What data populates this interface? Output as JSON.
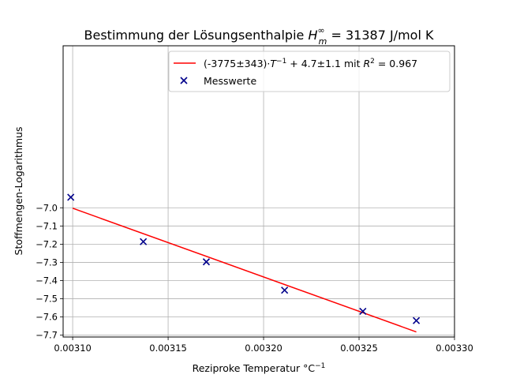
{
  "chart_data": {
    "type": "scatter",
    "title": "Bestimmung der Lösungsenthalpie",
    "title_symbol": "H",
    "title_symbol_sup": "∞",
    "title_symbol_sub": "m",
    "title_value": " = 31387 J/mol K",
    "xlabel": "Reziproke Temperatur",
    "xlabel_unit": "°C",
    "xlabel_unit_exp": "−1",
    "ylabel": "Stoffmengen-Logarithmus",
    "xlim": [
      0.003095,
      0.0033
    ],
    "ylim": [
      -7.71,
      -6.11
    ],
    "x_ticks": [
      0.0031,
      0.00315,
      0.0032,
      0.00325,
      0.0033
    ],
    "x_tick_labels": [
      "0.00310",
      "0.00315",
      "0.00320",
      "0.00325",
      "0.00330"
    ],
    "y_ticks": [
      -7.7,
      -7.6,
      -7.5,
      -7.4,
      -7.3,
      -7.2,
      -7.1,
      -7.0
    ],
    "y_tick_labels": [
      "−7.7",
      "−7.6",
      "−7.5",
      "−7.4",
      "−7.3",
      "−7.2",
      "−7.1",
      "−7.0"
    ],
    "grid": true,
    "legend_position": "top-right",
    "series": [
      {
        "name": "Messwerte",
        "kind": "scatter",
        "marker": "x",
        "color": "#00008b",
        "points": [
          {
            "x": 0.003099,
            "y": -6.942
          },
          {
            "x": 0.003137,
            "y": -7.186
          },
          {
            "x": 0.00317,
            "y": -7.297
          },
          {
            "x": 0.003211,
            "y": -7.453
          },
          {
            "x": 0.003252,
            "y": -7.569
          },
          {
            "x": 0.00328,
            "y": -7.62
          }
        ]
      },
      {
        "name": "fit",
        "kind": "line",
        "color": "#ff0000",
        "slope": -3775,
        "intercept": 4.7,
        "x_range": [
          0.0031,
          0.00328
        ],
        "legend_text": {
          "coef": "(-3775±343)·",
          "var": "T",
          "exp": "−1",
          "rest": " + 4.7±1.1 mit ",
          "r2var": "R",
          "r2exp": "2",
          "r2val": " = 0.967"
        }
      }
    ]
  }
}
